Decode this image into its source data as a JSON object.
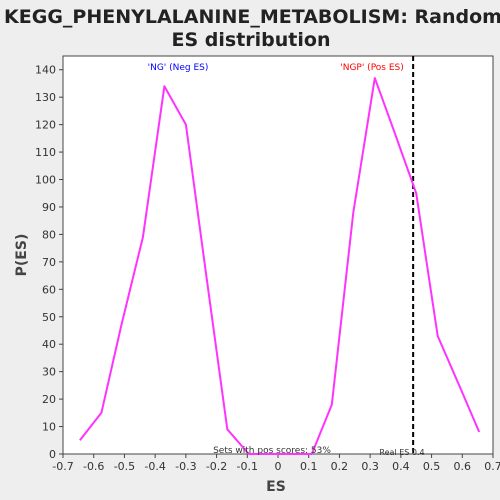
{
  "chart_data": {
    "type": "line",
    "title_line1": "KEGG_PHENYLALANINE_METABOLISM: Random",
    "title_line2": "ES distribution",
    "xlabel": "ES",
    "ylabel": "P(ES)",
    "xlim": [
      -0.7,
      0.7
    ],
    "ylim": [
      0,
      145
    ],
    "xticks": [
      -0.7,
      -0.6,
      -0.5,
      -0.4,
      -0.3,
      -0.2,
      -0.1,
      0.0,
      0.1,
      0.2,
      0.3,
      0.4,
      0.5,
      0.6,
      0.7
    ],
    "xtick_labels": [
      "-0.7",
      "-0.6",
      "-0.5",
      "-0.4",
      "-0.3",
      "-0.2",
      "-0.1",
      "0",
      "0.1",
      "0.2",
      "0.3",
      "0.4",
      "0.5",
      "0.6",
      "0.7"
    ],
    "yticks": [
      0,
      10,
      20,
      30,
      40,
      50,
      60,
      70,
      80,
      90,
      100,
      110,
      120,
      130,
      140
    ],
    "ytick_labels": [
      "0",
      "10",
      "20",
      "30",
      "40",
      "50",
      "60",
      "70",
      "80",
      "90",
      "100",
      "110",
      "120",
      "130",
      "140"
    ],
    "series": [
      {
        "color": "#ff33ff",
        "x": [
          -0.645,
          -0.575,
          -0.51,
          -0.44,
          -0.37,
          -0.3,
          -0.23,
          -0.165,
          -0.095,
          -0.03,
          0.04,
          0.11,
          0.175,
          0.245,
          0.315,
          0.38,
          0.45,
          0.52,
          0.59,
          0.655
        ],
        "y": [
          5,
          15,
          47,
          79,
          134,
          120,
          62,
          9,
          0,
          0,
          0,
          0,
          18,
          88,
          137,
          117,
          95,
          43,
          25,
          8
        ]
      }
    ],
    "real_es": 0.44,
    "annotations": {
      "neg_label": "'NG' (Neg ES)",
      "pos_label": "'NGP' (Pos ES)",
      "pos_scores": "Sets with pos scores: 53%",
      "real_es_label": "Real ES 0.4"
    },
    "colors": {
      "line": "#ff33ff",
      "neg_label": "#0000ff",
      "pos_label": "#ff0000",
      "real_es_line": "#000000",
      "plot_background": "#ffffff",
      "page_background": "#eeeeee"
    },
    "grid": false,
    "legend": "none"
  }
}
